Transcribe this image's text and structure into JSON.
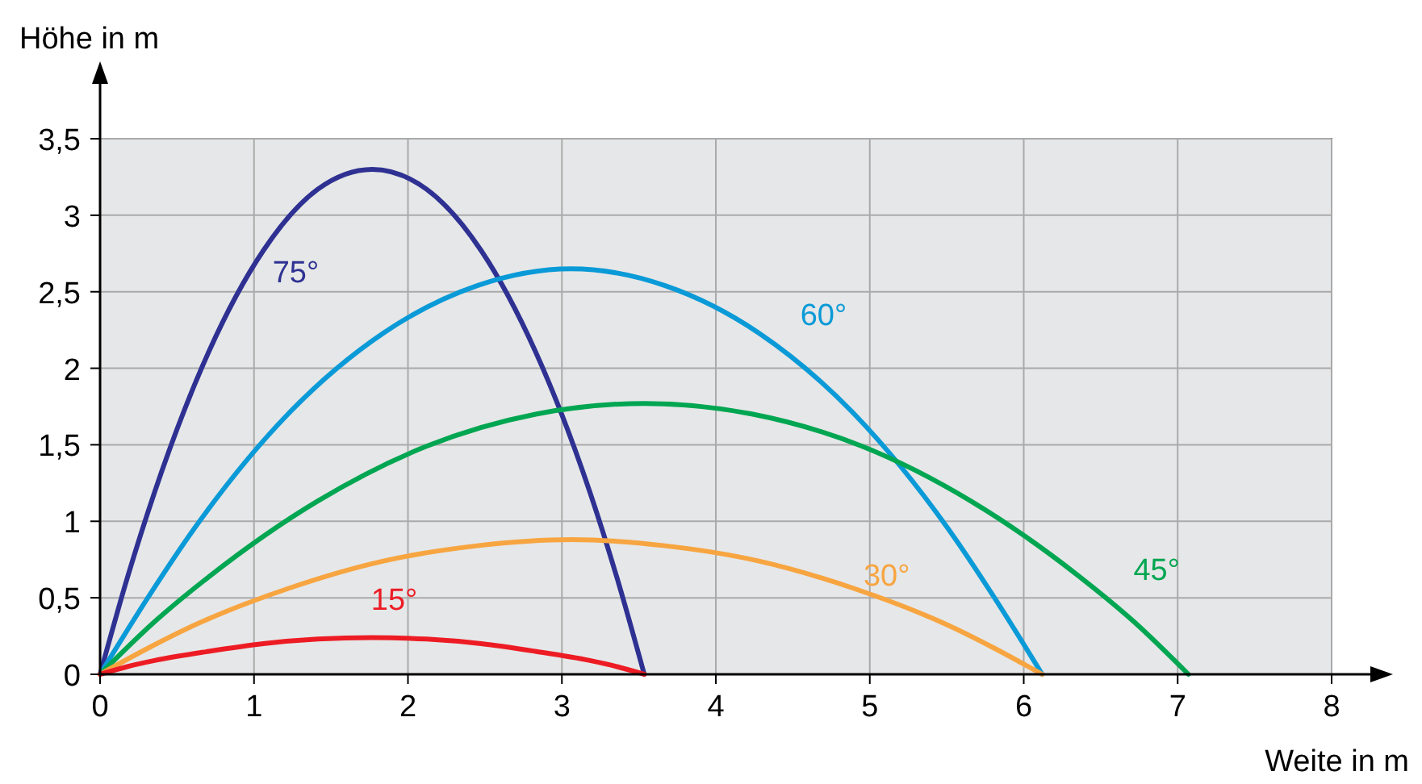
{
  "chart_data": {
    "type": "line",
    "xlabel": "Weite in m",
    "ylabel": "Höhe in m",
    "xlim": [
      0,
      8
    ],
    "ylim": [
      0,
      3.5
    ],
    "xticks": [
      0,
      1,
      2,
      3,
      4,
      5,
      6,
      7,
      8
    ],
    "yticks": [
      0,
      {
        "value": 0.5,
        "label": "0,5"
      },
      1,
      {
        "value": 1.5,
        "label": "1,5"
      },
      2,
      {
        "value": 2.5,
        "label": "2,5"
      },
      3,
      {
        "value": 3.5,
        "label": "3,5"
      }
    ],
    "grid": true,
    "marker": "none",
    "line_style": "solid",
    "series": [
      {
        "name": "75°",
        "color": "#2e3192",
        "x": [
          0,
          0.177,
          0.354,
          0.707,
          1.061,
          1.414,
          1.768,
          2.121,
          2.475,
          2.828,
          3.182,
          3.358,
          3.535
        ],
        "values": [
          0,
          0.63,
          1.19,
          2.11,
          2.77,
          3.17,
          3.3,
          3.17,
          2.77,
          2.11,
          1.19,
          0.63,
          0
        ]
      },
      {
        "name": "60°",
        "color": "#0a9ad7",
        "x": [
          0,
          0.31,
          0.61,
          1.22,
          1.84,
          2.45,
          3.06,
          3.67,
          4.28,
          4.9,
          5.51,
          5.81,
          6.12
        ],
        "values": [
          0,
          0.5,
          0.95,
          1.7,
          2.23,
          2.54,
          2.65,
          2.54,
          2.23,
          1.7,
          0.95,
          0.5,
          0
        ]
      },
      {
        "name": "45°",
        "color": "#00a651",
        "x": [
          0,
          0.35,
          0.71,
          1.41,
          2.12,
          2.83,
          3.54,
          4.24,
          4.95,
          5.66,
          6.36,
          6.72,
          7.07
        ],
        "values": [
          0,
          0.34,
          0.64,
          1.13,
          1.49,
          1.7,
          1.77,
          1.7,
          1.49,
          1.13,
          0.64,
          0.34,
          0
        ]
      },
      {
        "name": "30°",
        "color": "#f7a541",
        "x": [
          0,
          0.31,
          0.61,
          1.22,
          1.84,
          2.45,
          3.06,
          3.67,
          4.28,
          4.9,
          5.51,
          5.81,
          6.12
        ],
        "values": [
          0,
          0.17,
          0.32,
          0.56,
          0.74,
          0.84,
          0.88,
          0.84,
          0.74,
          0.56,
          0.32,
          0.17,
          0
        ]
      },
      {
        "name": "15°",
        "color": "#ed1c24",
        "x": [
          0,
          0.177,
          0.354,
          0.707,
          1.061,
          1.414,
          1.768,
          2.121,
          2.475,
          2.828,
          3.182,
          3.358,
          3.535
        ],
        "values": [
          0,
          0.05,
          0.09,
          0.15,
          0.2,
          0.23,
          0.24,
          0.23,
          0.2,
          0.15,
          0.09,
          0.05,
          0
        ]
      }
    ]
  }
}
